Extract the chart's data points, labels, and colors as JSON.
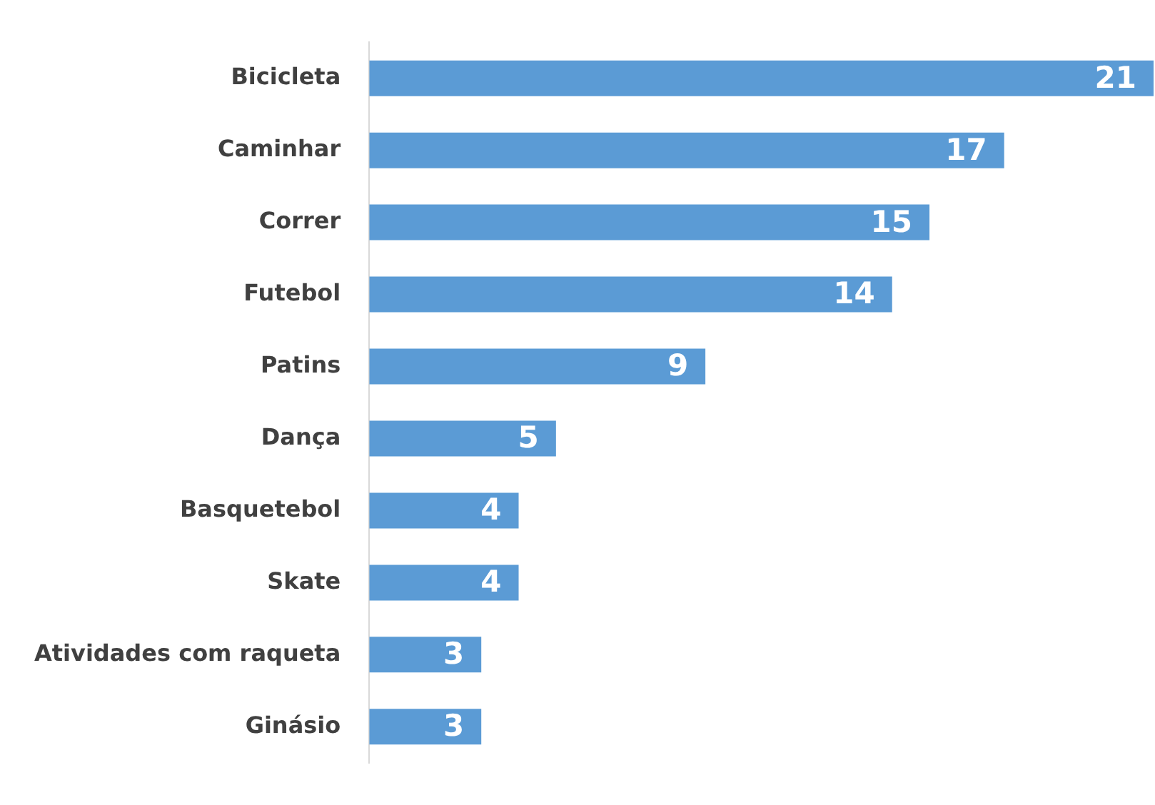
{
  "chart_data": {
    "type": "bar",
    "orientation": "horizontal",
    "categories": [
      "Bicicleta",
      "Caminhar",
      "Correr",
      "Futebol",
      "Patins",
      "Dança",
      "Basquetebol",
      "Skate",
      "Atividades com raqueta",
      "Ginásio"
    ],
    "values": [
      21,
      17,
      15,
      14,
      9,
      5,
      4,
      4,
      3,
      3
    ],
    "color": "#5b9bd5",
    "data_labels": true
  }
}
